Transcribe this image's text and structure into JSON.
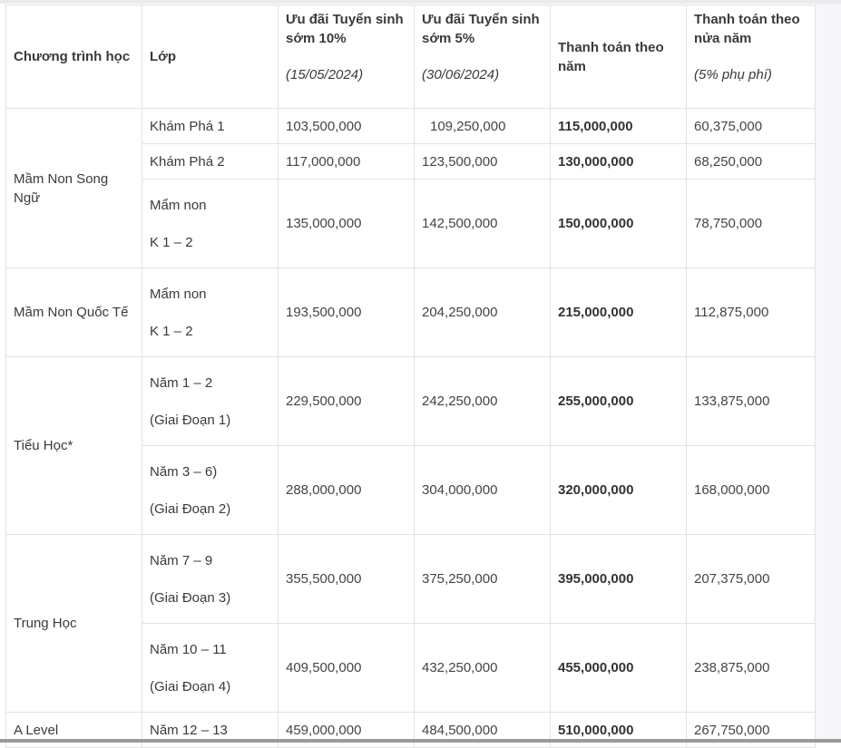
{
  "headers": {
    "program": "Chương trình học",
    "grade": "Lớp",
    "early10_title": "Ưu đãi Tuyển sinh sớm 10%",
    "early10_date": "(15/05/2024)",
    "early5_title": "Ưu đãi Tuyển sinh sớm 5%",
    "early5_date": "(30/06/2024)",
    "annual": "Thanh toán theo năm",
    "semi_title": "Thanh toán theo nửa năm",
    "semi_note": "(5% phụ phí)"
  },
  "programs": [
    "Mầm Non Song Ngữ",
    "Mầm Non Quốc Tế",
    "Tiểu Học*",
    "Trung Học",
    "A Level"
  ],
  "rows": [
    {
      "grade1": "Khám Phá 1",
      "grade2": "",
      "early10": "103,500,000",
      "early5": "109,250,000",
      "annual": "115,000,000",
      "semi": "60,375,000"
    },
    {
      "grade1": "Khám Phá 2",
      "grade2": "",
      "early10": "117,000,000",
      "early5": "123,500,000",
      "annual": "130,000,000",
      "semi": "68,250,000"
    },
    {
      "grade1": "Mẩm non",
      "grade2": "K 1 – 2",
      "early10": "135,000,000",
      "early5": "142,500,000",
      "annual": "150,000,000",
      "semi": "78,750,000"
    },
    {
      "grade1": "Mẩm non",
      "grade2": "K 1 – 2",
      "early10": "193,500,000",
      "early5": "204,250,000",
      "annual": "215,000,000",
      "semi": "112,875,000"
    },
    {
      "grade1": "Năm 1 – 2",
      "grade2": "(Giai Đoạn 1)",
      "early10": "229,500,000",
      "early5": "242,250,000",
      "annual": "255,000,000",
      "semi": "133,875,000"
    },
    {
      "grade1": "Năm 3 – 6)",
      "grade2": "(Giai Đoạn 2)",
      "early10": "288,000,000",
      "early5": "304,000,000",
      "annual": "320,000,000",
      "semi": "168,000,000"
    },
    {
      "grade1": "Năm 7 – 9",
      "grade2": "(Giai Đoạn 3)",
      "early10": "355,500,000",
      "early5": "375,250,000",
      "annual": "395,000,000",
      "semi": "207,375,000"
    },
    {
      "grade1": "Năm 10 – 11",
      "grade2": "(Giai Đoạn 4)",
      "early10": "409,500,000",
      "early5": "432,250,000",
      "annual": "455,000,000",
      "semi": "238,875,000"
    },
    {
      "grade1": "Năm 12 – 13",
      "grade2": "",
      "early10": "459,000,000",
      "early5": "484,500,000",
      "annual": "510,000,000",
      "semi": "267,750,000"
    }
  ]
}
